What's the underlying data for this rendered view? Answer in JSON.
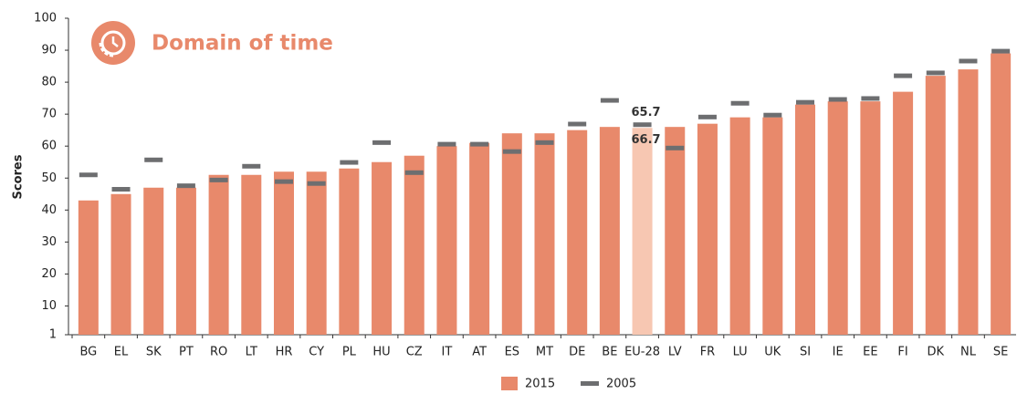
{
  "chart_data": {
    "type": "bar",
    "title": "Domain of time",
    "ylabel": "Scores",
    "categories": [
      "BG",
      "EL",
      "SK",
      "PT",
      "RO",
      "LT",
      "HR",
      "CY",
      "PL",
      "HU",
      "CZ",
      "IT",
      "AT",
      "ES",
      "MT",
      "DE",
      "BE",
      "EU-28",
      "LV",
      "FR",
      "LU",
      "UK",
      "SI",
      "IE",
      "EE",
      "FI",
      "DK",
      "NL",
      "SE"
    ],
    "series": [
      {
        "name": "2015",
        "color": "#e8896b",
        "highlight_color": "#f7c7b2",
        "values": [
          43,
          45,
          47,
          47,
          51,
          51,
          52,
          52,
          53,
          55,
          57,
          60,
          61,
          64,
          64,
          65,
          66,
          65.7,
          66,
          67,
          69,
          69,
          73,
          74,
          74,
          77,
          82,
          84,
          89
        ]
      },
      {
        "name": "2005",
        "color": "#6d6e70",
        "values": [
          51,
          46.5,
          55.7,
          47.6,
          49.4,
          53.7,
          48.9,
          48.3,
          54.9,
          61.1,
          51.7,
          60.6,
          60.6,
          58.3,
          61.1,
          66.9,
          74.3,
          66.7,
          59.4,
          69.1,
          73.4,
          69.7,
          73.7,
          74.6,
          74.9,
          82,
          82.9,
          86.6,
          89.7
        ]
      }
    ],
    "highlight": "EU-28",
    "ylim": [
      1,
      100
    ],
    "yticks": [
      1,
      10,
      20,
      30,
      40,
      50,
      60,
      70,
      80,
      90,
      100
    ],
    "grid": false
  }
}
